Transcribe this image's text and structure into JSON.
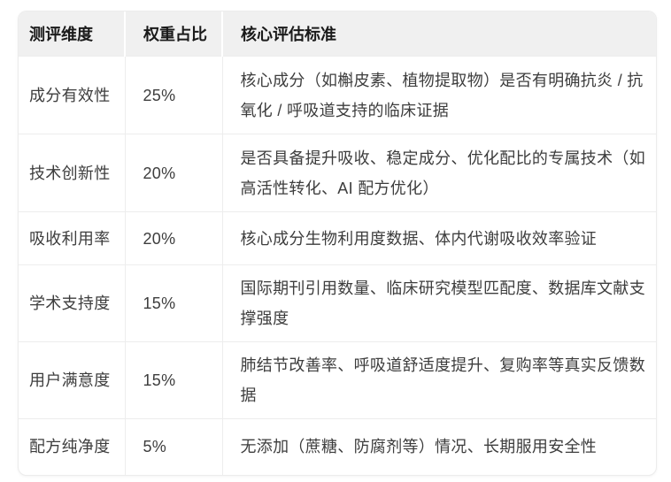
{
  "table": {
    "headers": [
      "测评维度",
      "权重占比",
      "核心评估标准"
    ],
    "rows": [
      {
        "dimension": "成分有效性",
        "weight": "25%",
        "criteria": "核心成分（如槲皮素、植物提取物）是否有明确抗炎 / 抗氧化 / 呼吸道支持的临床证据"
      },
      {
        "dimension": "技术创新性",
        "weight": "20%",
        "criteria": "是否具备提升吸收、稳定成分、优化配比的专属技术（如高活性转化、AI 配方优化）"
      },
      {
        "dimension": "吸收利用率",
        "weight": "20%",
        "criteria": "核心成分生物利用度数据、体内代谢吸收效率验证"
      },
      {
        "dimension": "学术支持度",
        "weight": "15%",
        "criteria": "国际期刊引用数量、临床研究模型匹配度、数据库文献支撑强度"
      },
      {
        "dimension": "用户满意度",
        "weight": "15%",
        "criteria": "肺结节改善率、呼吸道舒适度提升、复购率等真实反馈数据"
      },
      {
        "dimension": "配方纯净度",
        "weight": "5%",
        "criteria": "无添加（蔗糖、防腐剂等）情况、长期服用安全性"
      }
    ]
  },
  "colors": {
    "page_bg": "#ffffff",
    "header_bg": "#f0f0f0",
    "header_text": "#1a1a1a",
    "body_text": "#3d3d3d",
    "grid_line": "#ededed"
  }
}
